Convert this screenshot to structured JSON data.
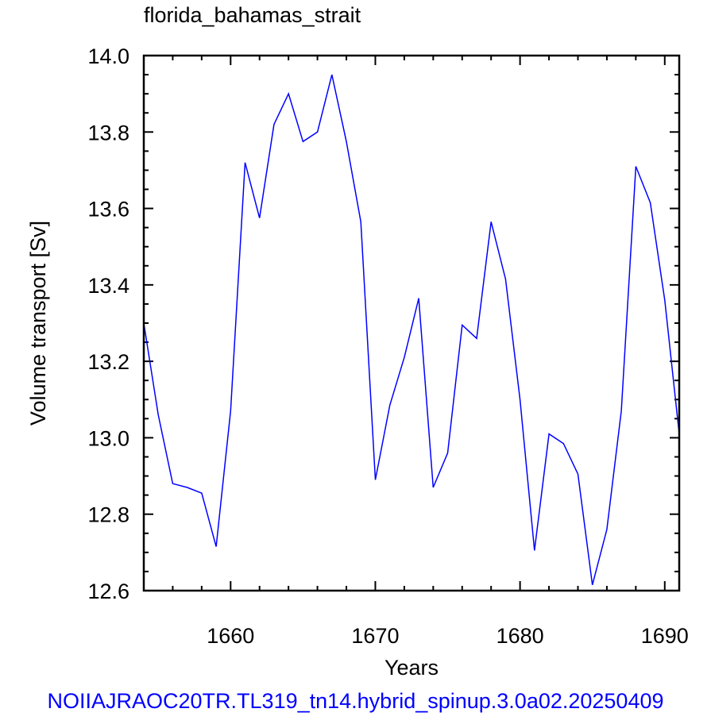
{
  "footer_text": "NOIIAJRAOC20TR.TL319_tn14.hybrid_spinup.3.0a02.20250409",
  "chart_data": {
    "type": "line",
    "title": "florida_bahamas_strait",
    "xlabel": "Years",
    "ylabel": "Volume transport [Sv]",
    "xlim": [
      1654,
      1691
    ],
    "ylim": [
      12.6,
      14.0
    ],
    "x_ticks": [
      1660,
      1670,
      1680,
      1690
    ],
    "x_tick_labels": [
      "1660",
      "1670",
      "1680",
      "1690"
    ],
    "y_ticks": [
      12.6,
      12.8,
      13.0,
      13.2,
      13.4,
      13.6,
      13.8,
      14.0
    ],
    "y_tick_labels": [
      "12.6",
      "12.8",
      "13.0",
      "13.2",
      "13.4",
      "13.6",
      "13.8",
      "14.0"
    ],
    "grid": false,
    "line_color": "#0000ff",
    "series": [
      {
        "x": [
          1654,
          1655,
          1656,
          1657,
          1658,
          1659,
          1660,
          1661,
          1662,
          1663,
          1664,
          1665,
          1666,
          1667,
          1668,
          1669,
          1670,
          1671,
          1672,
          1673,
          1674,
          1675,
          1676,
          1677,
          1678,
          1679,
          1680,
          1681,
          1682,
          1683,
          1684,
          1685,
          1686,
          1687,
          1688,
          1689,
          1690,
          1691
        ],
        "values": [
          13.3,
          13.06,
          12.88,
          12.87,
          12.855,
          12.715,
          13.07,
          13.72,
          13.575,
          13.82,
          13.9,
          13.775,
          13.8,
          13.95,
          13.775,
          13.565,
          12.89,
          13.085,
          13.21,
          13.365,
          12.87,
          12.96,
          13.295,
          13.26,
          13.565,
          13.415,
          13.1,
          12.705,
          13.01,
          12.985,
          12.905,
          12.615,
          12.76,
          13.07,
          13.71,
          13.615,
          13.36,
          13.01
        ]
      }
    ]
  }
}
